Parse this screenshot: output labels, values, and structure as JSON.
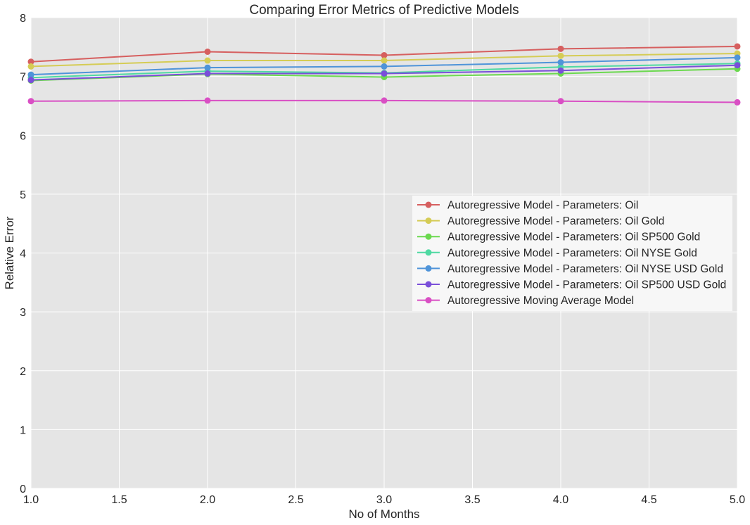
{
  "chart_data": {
    "type": "line",
    "title": "Comparing Error Metrics of Predictive Models",
    "xlabel": "No of Months",
    "ylabel": "Relative Error",
    "xlim": [
      1.0,
      5.0
    ],
    "ylim": [
      0,
      8
    ],
    "x_ticks": [
      "1.0",
      "1.5",
      "2.0",
      "2.5",
      "3.0",
      "3.5",
      "4.0",
      "4.5",
      "5.0"
    ],
    "y_ticks": [
      "0",
      "1",
      "2",
      "3",
      "4",
      "5",
      "6",
      "7",
      "8"
    ],
    "grid": true,
    "legend_position": "center-right",
    "x": [
      1,
      2,
      3,
      4,
      5
    ],
    "series": [
      {
        "name": "Autoregressive Model - Parameters: Oil",
        "color": "#d65f5f",
        "values": [
          7.25,
          7.42,
          7.36,
          7.47,
          7.51
        ]
      },
      {
        "name": "Autoregressive Model - Parameters: Oil Gold",
        "color": "#d5cc55",
        "values": [
          7.17,
          7.27,
          7.27,
          7.35,
          7.39
        ]
      },
      {
        "name": "Autoregressive Model - Parameters: Oil SP500 Gold",
        "color": "#6bd94f",
        "values": [
          6.93,
          7.04,
          6.99,
          7.05,
          7.13
        ]
      },
      {
        "name": "Autoregressive Model - Parameters: Oil NYSE Gold",
        "color": "#4fd9a2",
        "values": [
          6.98,
          7.09,
          7.06,
          7.16,
          7.22
        ]
      },
      {
        "name": "Autoregressive Model - Parameters: Oil NYSE USD Gold",
        "color": "#4f94d9",
        "values": [
          7.03,
          7.15,
          7.17,
          7.24,
          7.32
        ]
      },
      {
        "name": "Autoregressive Model - Parameters: Oil SP500 USD Gold",
        "color": "#7a4fd9",
        "values": [
          6.94,
          7.05,
          7.05,
          7.1,
          7.19
        ]
      },
      {
        "name": "Autoregressive Moving Average Model",
        "color": "#d94fc4",
        "values": [
          6.58,
          6.59,
          6.59,
          6.58,
          6.56
        ]
      }
    ],
    "colors": {
      "plot_background": "#e5e5e5",
      "grid": "#ffffff",
      "legend_background": "#f7f7f7"
    }
  }
}
